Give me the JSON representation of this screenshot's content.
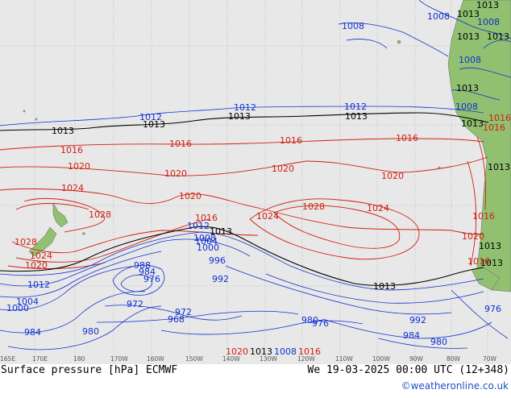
{
  "footer": {
    "title": "Surface pressure [hPa] ECMWF",
    "valid_time": "We 19-03-2025 00:00 UTC (12+348)",
    "credit": "©weatheronline.co.uk"
  },
  "axis": {
    "longitude_ticks": [
      "165E",
      "170E",
      "180",
      "170W",
      "160W",
      "150W",
      "140W",
      "130W",
      "120W",
      "110W",
      "100W",
      "90W",
      "80W",
      "70W"
    ]
  },
  "colors": {
    "ocean": "#e8e8e8",
    "land": "#90c070",
    "isobar_high": "#d02010",
    "isobar_low": "#1030d0",
    "isobar_1013": "#000000",
    "grid": "#b8b8c8"
  },
  "isobar_labels": [
    {
      "text": "1008",
      "color": "blue"
    },
    {
      "text": "1013",
      "color": "black"
    },
    {
      "text": "1013",
      "color": "black"
    },
    {
      "text": "1008",
      "color": "blue"
    },
    {
      "text": "1008",
      "color": "blue"
    },
    {
      "text": "1013",
      "color": "black"
    },
    {
      "text": "1008",
      "color": "blue"
    },
    {
      "text": "1013",
      "color": "black"
    },
    {
      "text": "1008",
      "color": "blue"
    },
    {
      "text": "1012",
      "color": "blue"
    },
    {
      "text": "1012",
      "color": "blue"
    },
    {
      "text": "1012",
      "color": "blue"
    },
    {
      "text": "1013",
      "color": "black"
    },
    {
      "text": "1013",
      "color": "black"
    },
    {
      "text": "1013",
      "color": "black"
    },
    {
      "text": "1013",
      "color": "black"
    },
    {
      "text": "1013",
      "color": "black"
    },
    {
      "text": "1016",
      "color": "red"
    },
    {
      "text": "1016",
      "color": "red"
    },
    {
      "text": "1016",
      "color": "red"
    },
    {
      "text": "1016",
      "color": "red"
    },
    {
      "text": "1016",
      "color": "red"
    },
    {
      "text": "1020",
      "color": "red"
    },
    {
      "text": "1020",
      "color": "red"
    },
    {
      "text": "1020",
      "color": "red"
    },
    {
      "text": "1020",
      "color": "red"
    },
    {
      "text": "1024",
      "color": "red"
    },
    {
      "text": "1028",
      "color": "red"
    },
    {
      "text": "1020",
      "color": "red"
    },
    {
      "text": "1024",
      "color": "red"
    },
    {
      "text": "1028",
      "color": "red"
    },
    {
      "text": "1024",
      "color": "red"
    },
    {
      "text": "1016",
      "color": "red"
    },
    {
      "text": "1013",
      "color": "black"
    },
    {
      "text": "1012",
      "color": "blue"
    },
    {
      "text": "1013",
      "color": "black"
    },
    {
      "text": "1008",
      "color": "blue"
    },
    {
      "text": "1004",
      "color": "blue"
    },
    {
      "text": "1000",
      "color": "blue"
    },
    {
      "text": "996",
      "color": "blue"
    },
    {
      "text": "988",
      "color": "blue"
    },
    {
      "text": "984",
      "color": "blue"
    },
    {
      "text": "976",
      "color": "blue"
    },
    {
      "text": "992",
      "color": "blue"
    },
    {
      "text": "972",
      "color": "blue"
    },
    {
      "text": "972",
      "color": "blue"
    },
    {
      "text": "968",
      "color": "blue"
    },
    {
      "text": "1013",
      "color": "black"
    },
    {
      "text": "1016",
      "color": "red"
    },
    {
      "text": "1020",
      "color": "red"
    },
    {
      "text": "1013",
      "color": "black"
    },
    {
      "text": "1028",
      "color": "red"
    },
    {
      "text": "1024",
      "color": "red"
    },
    {
      "text": "1020",
      "color": "red"
    },
    {
      "text": "1012",
      "color": "blue"
    },
    {
      "text": "1004",
      "color": "blue"
    },
    {
      "text": "1000",
      "color": "blue"
    },
    {
      "text": "984",
      "color": "blue"
    },
    {
      "text": "980",
      "color": "blue"
    },
    {
      "text": "980",
      "color": "blue"
    },
    {
      "text": "976",
      "color": "blue"
    },
    {
      "text": "992",
      "color": "blue"
    },
    {
      "text": "984",
      "color": "blue"
    },
    {
      "text": "980",
      "color": "blue"
    },
    {
      "text": "976",
      "color": "blue"
    },
    {
      "text": "1013",
      "color": "black"
    },
    {
      "text": "1016",
      "color": "red"
    },
    {
      "text": "1013",
      "color": "black"
    },
    {
      "text": "1016",
      "color": "red"
    },
    {
      "text": "1020",
      "color": "red"
    },
    {
      "text": "1013",
      "color": "black"
    },
    {
      "text": "1008",
      "color": "blue"
    },
    {
      "text": "1016",
      "color": "red"
    }
  ]
}
